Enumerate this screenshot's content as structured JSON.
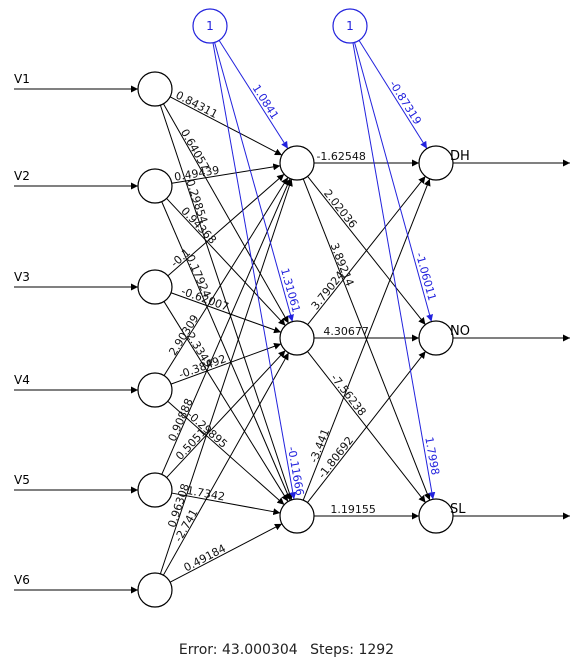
{
  "inputs": [
    "V1",
    "V2",
    "V3",
    "V4",
    "V5",
    "V6"
  ],
  "outputs": [
    "DH",
    "NO",
    "SL"
  ],
  "bias_label": "1",
  "weights": {
    "input_hidden": [
      [
        "0.84311",
        "0.64057",
        "0.29854"
      ],
      [
        "0.49439",
        "0.94368",
        "0.17924"
      ],
      [
        "-0.1",
        "-0.62007",
        "2.3349"
      ],
      [
        "2.90309",
        "-0.38492",
        "-0.29895"
      ],
      [
        "0.90888",
        "0.5051",
        "1.7342"
      ],
      [
        "0.96308",
        "-2.741",
        "0.49184"
      ]
    ],
    "hidden_output": [
      [
        "-1.62548",
        "2.02036",
        "3.89214"
      ],
      [
        "3.79024",
        "4.30677",
        "-7.56238"
      ],
      [
        "-3.441",
        "-1.80692",
        "1.19155"
      ]
    ],
    "bias_hidden": [
      "1.0841",
      "1.31061",
      "-0.11666"
    ],
    "bias_output": [
      "-0.87319",
      "-1.06011",
      "1.7998"
    ]
  },
  "footer": {
    "error": "Error: 43.000304",
    "steps": "Steps: 1292"
  }
}
